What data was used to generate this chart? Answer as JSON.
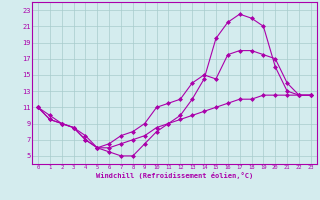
{
  "background_color": "#d4ecee",
  "grid_color": "#a8cccc",
  "line_color": "#aa00aa",
  "xlabel": "Windchill (Refroidissement éolien,°C)",
  "xlim": [
    -0.5,
    23.5
  ],
  "ylim": [
    4,
    24
  ],
  "yticks": [
    5,
    7,
    9,
    11,
    13,
    15,
    17,
    19,
    21,
    23
  ],
  "xticks": [
    0,
    1,
    2,
    3,
    4,
    5,
    6,
    7,
    8,
    9,
    10,
    11,
    12,
    13,
    14,
    15,
    16,
    17,
    18,
    19,
    20,
    21,
    22,
    23
  ],
  "curve1_x": [
    0,
    1,
    2,
    3,
    4,
    5,
    6,
    7,
    8,
    9,
    10,
    11,
    12,
    13,
    14,
    15,
    16,
    17,
    18,
    19,
    20,
    21,
    22,
    23
  ],
  "curve1_y": [
    11,
    10,
    9,
    8.5,
    7.5,
    6,
    6.5,
    7.5,
    8,
    9,
    11,
    11.5,
    12,
    14,
    15,
    14.5,
    17.5,
    18,
    18,
    17.5,
    17,
    14,
    12.5,
    12.5
  ],
  "curve2_x": [
    0,
    1,
    2,
    3,
    4,
    5,
    6,
    7,
    8,
    9,
    10,
    11,
    12,
    13,
    14,
    15,
    16,
    17,
    18,
    19,
    20,
    21,
    22,
    23
  ],
  "curve2_y": [
    11,
    9.5,
    9,
    8.5,
    7,
    6,
    5.5,
    5,
    5,
    6.5,
    8,
    9,
    10,
    12,
    14.5,
    19.5,
    21.5,
    22.5,
    22,
    21,
    16,
    13,
    12.5,
    12.5
  ],
  "curve3_x": [
    0,
    1,
    2,
    3,
    4,
    5,
    6,
    7,
    8,
    9,
    10,
    11,
    12,
    13,
    14,
    15,
    16,
    17,
    18,
    19,
    20,
    21,
    22,
    23
  ],
  "curve3_y": [
    11,
    9.5,
    9,
    8.5,
    7,
    6,
    6,
    6.5,
    7,
    7.5,
    8.5,
    9,
    9.5,
    10,
    10.5,
    11,
    11.5,
    12,
    12,
    12.5,
    12.5,
    12.5,
    12.5,
    12.5
  ],
  "marker": "D",
  "markersize": 2.0,
  "linewidth": 0.8
}
